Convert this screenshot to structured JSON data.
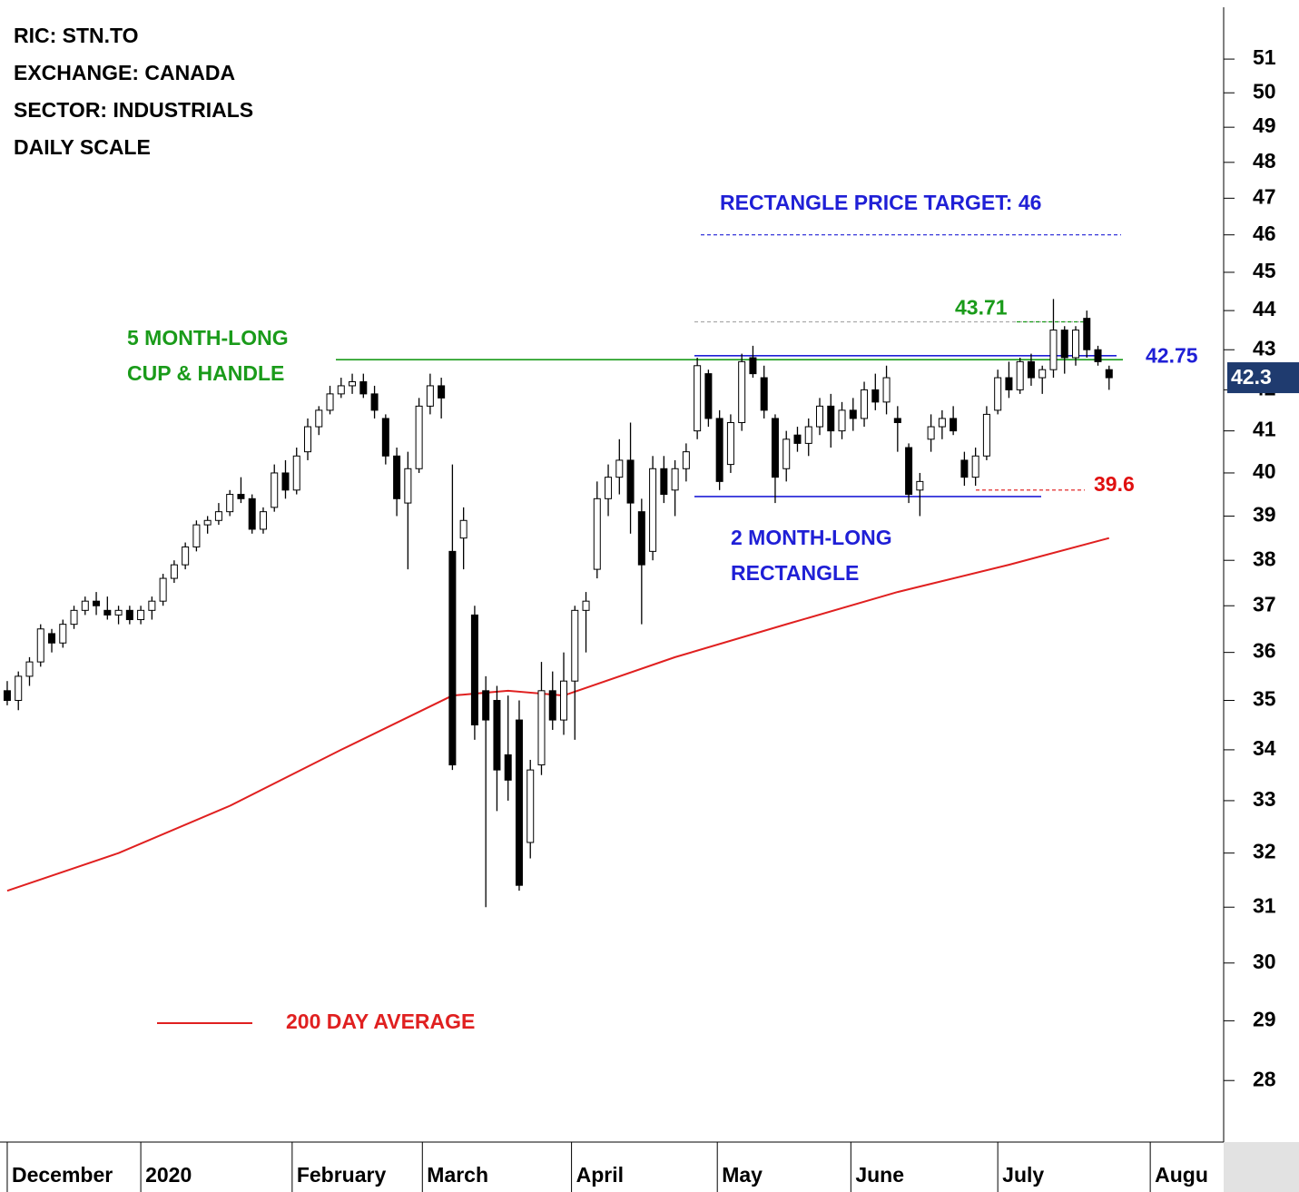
{
  "chart_data": {
    "type": "candlestick",
    "info": [
      "RIC: STN.TO",
      "EXCHANGE: CANADA",
      "SECTOR: INDUSTRIALS",
      "DAILY SCALE"
    ],
    "log": true,
    "ylim": [
      27.05,
      52.8
    ],
    "yticks": [
      28,
      29,
      30,
      31,
      32,
      33,
      34,
      35,
      36,
      37,
      38,
      39,
      40,
      41,
      42,
      43,
      44,
      45,
      46,
      47,
      48,
      49,
      50,
      51
    ],
    "xlim": [
      -0.65,
      109.05
    ],
    "xticks": [
      {
        "value": 0,
        "label": "December"
      },
      {
        "value": 12,
        "label": "2020"
      },
      {
        "value": 25.6,
        "label": "February"
      },
      {
        "value": 37.3,
        "label": "March"
      },
      {
        "value": 50.7,
        "label": "April"
      },
      {
        "value": 63.8,
        "label": "May"
      },
      {
        "value": 75.8,
        "label": "June"
      },
      {
        "value": 89,
        "label": "July"
      },
      {
        "value": 102.7,
        "label": "Augu"
      }
    ],
    "up_color": "#ffffff",
    "down_color": "#000000",
    "ohlc": [
      [
        35.2,
        35.4,
        34.9,
        35.0
      ],
      [
        35.0,
        35.6,
        34.8,
        35.5
      ],
      [
        35.5,
        35.9,
        35.3,
        35.8
      ],
      [
        35.8,
        36.6,
        35.7,
        36.5
      ],
      [
        36.4,
        36.5,
        36.0,
        36.2
      ],
      [
        36.2,
        36.7,
        36.1,
        36.6
      ],
      [
        36.6,
        37.0,
        36.5,
        36.9
      ],
      [
        36.9,
        37.2,
        36.8,
        37.1
      ],
      [
        37.1,
        37.3,
        36.8,
        37.0
      ],
      [
        36.9,
        37.2,
        36.7,
        36.8
      ],
      [
        36.8,
        37.0,
        36.6,
        36.9
      ],
      [
        36.9,
        37.0,
        36.6,
        36.7
      ],
      [
        36.7,
        37.0,
        36.6,
        36.9
      ],
      [
        36.9,
        37.2,
        36.7,
        37.1
      ],
      [
        37.1,
        37.7,
        37.0,
        37.6
      ],
      [
        37.6,
        38.0,
        37.5,
        37.9
      ],
      [
        37.9,
        38.4,
        37.8,
        38.3
      ],
      [
        38.3,
        38.9,
        38.2,
        38.8
      ],
      [
        38.8,
        39.0,
        38.6,
        38.9
      ],
      [
        38.9,
        39.3,
        38.8,
        39.1
      ],
      [
        39.1,
        39.6,
        39.0,
        39.5
      ],
      [
        39.5,
        39.9,
        39.3,
        39.4
      ],
      [
        39.4,
        39.5,
        38.6,
        38.7
      ],
      [
        38.7,
        39.2,
        38.6,
        39.1
      ],
      [
        39.2,
        40.2,
        39.1,
        40.0
      ],
      [
        40.0,
        40.3,
        39.4,
        39.6
      ],
      [
        39.6,
        40.6,
        39.5,
        40.4
      ],
      [
        40.5,
        41.3,
        40.3,
        41.1
      ],
      [
        41.1,
        41.6,
        40.9,
        41.5
      ],
      [
        41.5,
        42.1,
        41.4,
        41.9
      ],
      [
        41.9,
        42.3,
        41.8,
        42.1
      ],
      [
        42.1,
        42.4,
        41.9,
        42.2
      ],
      [
        42.2,
        42.4,
        41.8,
        41.9
      ],
      [
        41.9,
        42.1,
        41.3,
        41.5
      ],
      [
        41.3,
        41.4,
        40.2,
        40.4
      ],
      [
        40.4,
        40.6,
        39.0,
        39.4
      ],
      [
        39.3,
        40.5,
        37.8,
        40.1
      ],
      [
        40.1,
        41.8,
        40.0,
        41.6
      ],
      [
        41.6,
        42.4,
        41.4,
        42.1
      ],
      [
        42.1,
        42.3,
        41.3,
        41.8
      ],
      [
        38.2,
        40.2,
        33.6,
        33.7
      ],
      [
        38.5,
        39.2,
        37.8,
        38.9
      ],
      [
        36.8,
        37.0,
        34.2,
        34.5
      ],
      [
        35.2,
        35.5,
        31.0,
        34.6
      ],
      [
        35.0,
        35.3,
        32.8,
        33.6
      ],
      [
        33.9,
        35.1,
        33.0,
        33.4
      ],
      [
        34.6,
        35.0,
        31.3,
        31.4
      ],
      [
        32.2,
        33.8,
        31.9,
        33.6
      ],
      [
        33.7,
        35.8,
        33.5,
        35.2
      ],
      [
        35.2,
        35.6,
        34.4,
        34.6
      ],
      [
        34.6,
        36.0,
        34.3,
        35.4
      ],
      [
        35.4,
        37.0,
        34.2,
        36.9
      ],
      [
        36.9,
        37.3,
        36.0,
        37.1
      ],
      [
        37.8,
        39.8,
        37.6,
        39.4
      ],
      [
        39.4,
        40.2,
        39.0,
        39.9
      ],
      [
        39.9,
        40.8,
        39.5,
        40.3
      ],
      [
        40.3,
        41.2,
        38.6,
        39.3
      ],
      [
        39.1,
        39.4,
        36.6,
        37.9
      ],
      [
        38.2,
        40.4,
        38.0,
        40.1
      ],
      [
        40.1,
        40.4,
        39.3,
        39.5
      ],
      [
        39.6,
        40.3,
        39.0,
        40.1
      ],
      [
        40.1,
        40.7,
        39.8,
        40.5
      ],
      [
        41.0,
        42.8,
        40.8,
        42.6
      ],
      [
        42.4,
        42.5,
        41.1,
        41.3
      ],
      [
        41.3,
        41.5,
        39.6,
        39.8
      ],
      [
        40.2,
        41.4,
        40.0,
        41.2
      ],
      [
        41.2,
        42.9,
        41.0,
        42.7
      ],
      [
        42.8,
        43.1,
        42.3,
        42.4
      ],
      [
        42.3,
        42.6,
        41.3,
        41.5
      ],
      [
        41.3,
        41.4,
        39.3,
        39.9
      ],
      [
        40.1,
        41.0,
        39.8,
        40.8
      ],
      [
        40.9,
        41.1,
        40.5,
        40.7
      ],
      [
        40.7,
        41.3,
        40.4,
        41.1
      ],
      [
        41.1,
        41.8,
        40.9,
        41.6
      ],
      [
        41.6,
        41.9,
        40.6,
        41.0
      ],
      [
        41.0,
        41.7,
        40.8,
        41.5
      ],
      [
        41.5,
        41.8,
        41.0,
        41.3
      ],
      [
        41.3,
        42.2,
        41.1,
        42.0
      ],
      [
        42.0,
        42.4,
        41.5,
        41.7
      ],
      [
        41.7,
        42.6,
        41.4,
        42.3
      ],
      [
        41.3,
        41.6,
        40.5,
        41.2
      ],
      [
        40.6,
        40.7,
        39.3,
        39.5
      ],
      [
        39.6,
        40.0,
        39.0,
        39.8
      ],
      [
        40.8,
        41.4,
        40.5,
        41.1
      ],
      [
        41.1,
        41.5,
        40.8,
        41.3
      ],
      [
        41.3,
        41.6,
        40.9,
        41.0
      ],
      [
        40.3,
        40.5,
        39.7,
        39.9
      ],
      [
        39.9,
        40.6,
        39.7,
        40.4
      ],
      [
        40.4,
        41.6,
        40.3,
        41.4
      ],
      [
        41.5,
        42.5,
        41.4,
        42.3
      ],
      [
        42.3,
        42.7,
        41.8,
        42.0
      ],
      [
        42.0,
        42.8,
        41.9,
        42.7
      ],
      [
        42.7,
        42.9,
        42.1,
        42.3
      ],
      [
        42.3,
        42.6,
        41.9,
        42.5
      ],
      [
        42.5,
        44.3,
        42.3,
        43.5
      ],
      [
        43.5,
        43.6,
        42.4,
        42.8
      ],
      [
        42.8,
        43.6,
        42.6,
        43.5
      ],
      [
        43.8,
        44.0,
        42.8,
        43.0
      ],
      [
        43.0,
        43.1,
        42.6,
        42.7
      ],
      [
        42.5,
        42.6,
        42.0,
        42.3
      ]
    ],
    "ma": {
      "name": "200 DAY AVERAGE",
      "color": "#e02020",
      "x": [
        0,
        10,
        20,
        30,
        40,
        45,
        50,
        60,
        70,
        80,
        90,
        99
      ],
      "values": [
        31.3,
        32.0,
        32.9,
        34.0,
        35.1,
        35.2,
        35.1,
        35.9,
        36.6,
        37.3,
        37.9,
        38.5
      ]
    },
    "levels": [
      {
        "value": 42.75,
        "color": "#1a9b1a",
        "dashed": false
      },
      {
        "value": 42.85,
        "color": "#1f1fd6",
        "dashed": false
      },
      {
        "value": 39.45,
        "color": "#1f1fd6",
        "dashed": false
      },
      {
        "value": 39.6,
        "color": "#e01010",
        "dashed": true
      },
      {
        "value": 43.71,
        "color": "#aaaaaa",
        "dashed": true
      },
      {
        "value": 43.71,
        "color": "#1a9b1a",
        "dashed": true
      },
      {
        "value": 46,
        "color": "#1f1fd6",
        "dashed": true
      }
    ],
    "annotations": [
      {
        "text": "5 MONTH-LONG",
        "color": "#1a9b1a"
      },
      {
        "text": "CUP & HANDLE",
        "color": "#1a9b1a"
      },
      {
        "text": "2 MONTH-LONG",
        "color": "#1f1fd6"
      },
      {
        "text": "RECTANGLE",
        "color": "#1f1fd6"
      },
      {
        "text": "RECTANGLE PRICE TARGET: 46",
        "color": "#1f1fd6"
      }
    ]
  }
}
